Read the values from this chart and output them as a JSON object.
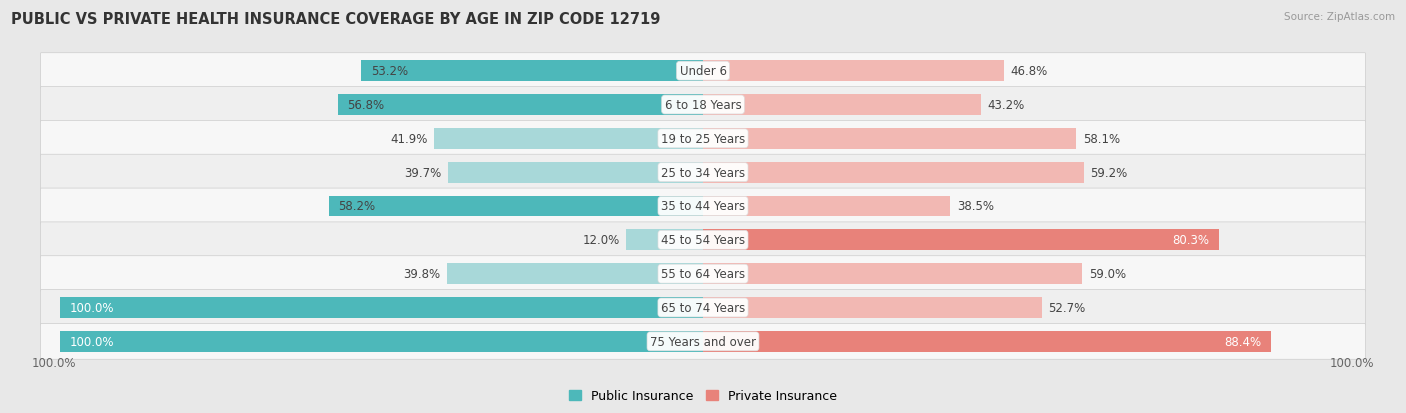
{
  "title": "PUBLIC VS PRIVATE HEALTH INSURANCE COVERAGE BY AGE IN ZIP CODE 12719",
  "source": "Source: ZipAtlas.com",
  "categories": [
    "Under 6",
    "6 to 18 Years",
    "19 to 25 Years",
    "25 to 34 Years",
    "35 to 44 Years",
    "45 to 54 Years",
    "55 to 64 Years",
    "65 to 74 Years",
    "75 Years and over"
  ],
  "public_values": [
    53.2,
    56.8,
    41.9,
    39.7,
    58.2,
    12.0,
    39.8,
    100.0,
    100.0
  ],
  "private_values": [
    46.8,
    43.2,
    58.1,
    59.2,
    38.5,
    80.3,
    59.0,
    52.7,
    88.4
  ],
  "public_color": "#4db8ba",
  "private_color": "#e8827a",
  "public_light_color": "#a8d8d9",
  "private_light_color": "#f2b8b3",
  "bg_color": "#e8e8e8",
  "row_light_color": "#f7f7f7",
  "row_dark_color": "#efefef",
  "max_value": 100.0,
  "title_fontsize": 10.5,
  "label_fontsize": 8.5,
  "cat_fontsize": 8.5,
  "legend_fontsize": 9,
  "bar_height": 0.62,
  "x_axis_label_left": "100.0%",
  "x_axis_label_right": "100.0%"
}
